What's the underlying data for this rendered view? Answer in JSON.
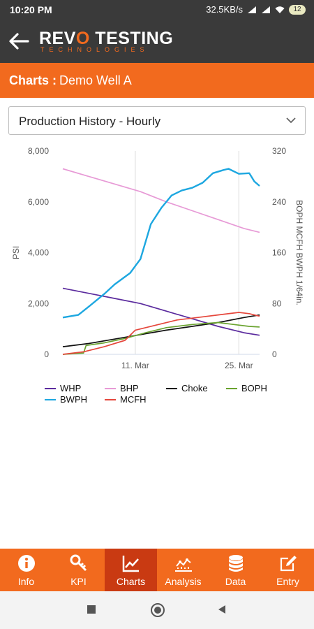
{
  "status_bar": {
    "time": "10:20 PM",
    "net_speed": "32.5KB/s",
    "battery": "12"
  },
  "app_bar": {
    "logo_main_pre": "REV",
    "logo_main_o": "O",
    "logo_main_post": " TESTING",
    "logo_sub": "TECHNOLOGIES"
  },
  "title_bar": {
    "label": "Charts :",
    "well": "Demo Well A"
  },
  "chart_selector": {
    "value": "Production History - Hourly"
  },
  "chart_data": {
    "type": "line",
    "y_left": {
      "label": "PSI",
      "ylim": [
        0,
        8000
      ],
      "ticks": [
        "8,000",
        "6,000",
        "4,000",
        "2,000",
        "0"
      ]
    },
    "y_right": {
      "label": "BOPH MCFH BWPH 1/64in.",
      "ylim": [
        0,
        320
      ],
      "ticks": [
        "320",
        "240",
        "160",
        "80",
        "0"
      ]
    },
    "x_ticks": [
      "11. Mar",
      "25. Mar"
    ],
    "x_range_days": [
      0,
      38
    ],
    "x_tick_days": [
      14,
      34
    ],
    "grid": "vertical at x ticks",
    "legend": "bottom",
    "series": [
      {
        "name": "WHP",
        "axis": "left",
        "color": "#5b2b9e",
        "x": [
          0,
          5,
          10,
          15,
          20,
          25,
          30,
          35,
          38
        ],
        "y": [
          2600,
          2400,
          2200,
          2000,
          1700,
          1400,
          1100,
          850,
          750
        ]
      },
      {
        "name": "BHP",
        "axis": "left",
        "color": "#e79ad6",
        "x": [
          0,
          5,
          10,
          15,
          20,
          25,
          30,
          35,
          38
        ],
        "y": [
          7300,
          7000,
          6700,
          6400,
          6000,
          5650,
          5300,
          4950,
          4800
        ]
      },
      {
        "name": "Choke",
        "axis": "right",
        "color": "#111111",
        "x": [
          0,
          5,
          10,
          15,
          20,
          25,
          30,
          35,
          38
        ],
        "y": [
          12,
          17,
          24,
          31,
          38,
          44,
          50,
          58,
          62
        ]
      },
      {
        "name": "BOPH",
        "axis": "right",
        "color": "#6aa32f",
        "x": [
          0,
          4,
          4.5,
          8,
          12,
          16,
          20,
          25,
          30,
          34,
          36,
          38
        ],
        "y": [
          0,
          2,
          14,
          18,
          25,
          34,
          42,
          47,
          50,
          46,
          44,
          43
        ]
      },
      {
        "name": "BWPH",
        "axis": "right",
        "color": "#1da7e0",
        "x": [
          0,
          3,
          5,
          8,
          10,
          13,
          15,
          17,
          19,
          21,
          23,
          25,
          27,
          29,
          31,
          32,
          34,
          36,
          37,
          38
        ],
        "y": [
          58,
          62,
          75,
          95,
          110,
          128,
          150,
          205,
          230,
          250,
          258,
          262,
          270,
          285,
          290,
          292,
          284,
          285,
          272,
          265
        ]
      },
      {
        "name": "MCFH",
        "axis": "right",
        "color": "#e5473c",
        "x": [
          0,
          4,
          8,
          12,
          14,
          18,
          22,
          26,
          30,
          34,
          36,
          38
        ],
        "y": [
          0,
          4,
          12,
          22,
          38,
          46,
          54,
          58,
          62,
          66,
          64,
          60
        ]
      }
    ]
  },
  "bottom_nav": {
    "items": [
      {
        "key": "info",
        "label": "Info"
      },
      {
        "key": "kpi",
        "label": "KPI"
      },
      {
        "key": "charts",
        "label": "Charts"
      },
      {
        "key": "analysis",
        "label": "Analysis"
      },
      {
        "key": "data",
        "label": "Data"
      },
      {
        "key": "entry",
        "label": "Entry"
      }
    ],
    "active": "charts"
  }
}
